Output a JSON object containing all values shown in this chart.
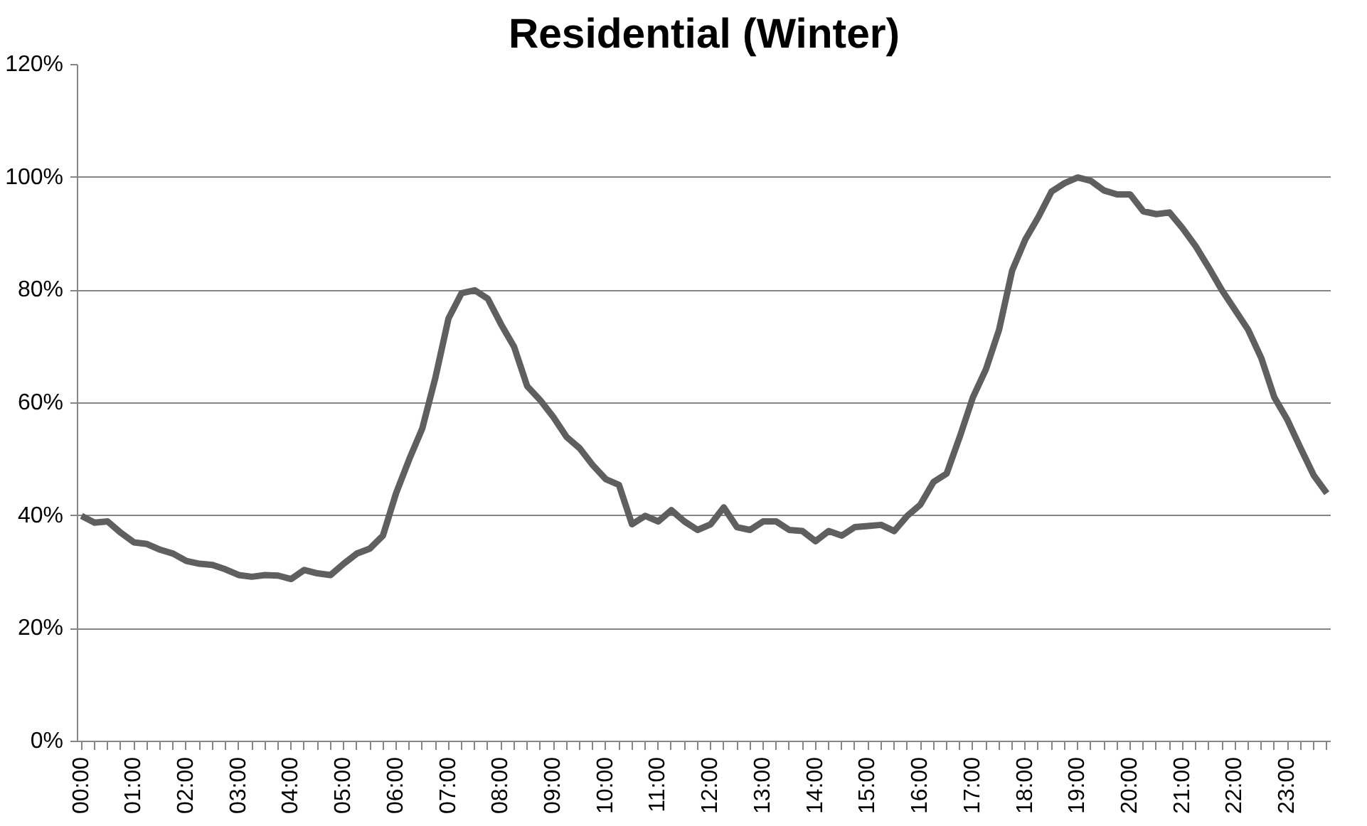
{
  "chart_data": {
    "type": "line",
    "title": "Residential (Winter)",
    "categories": [
      "00:00",
      null,
      null,
      null,
      "01:00",
      null,
      null,
      null,
      "02:00",
      null,
      null,
      null,
      "03:00",
      null,
      null,
      null,
      "04:00",
      null,
      null,
      null,
      "05:00",
      null,
      null,
      null,
      "06:00",
      null,
      null,
      null,
      "07:00",
      null,
      null,
      null,
      "08:00",
      null,
      null,
      null,
      "09:00",
      null,
      null,
      null,
      "10:00",
      null,
      null,
      null,
      "11:00",
      null,
      null,
      null,
      "12:00",
      null,
      null,
      null,
      "13:00",
      null,
      null,
      null,
      "14:00",
      null,
      null,
      null,
      "15:00",
      null,
      null,
      null,
      "16:00",
      null,
      null,
      null,
      "17:00",
      null,
      null,
      null,
      "18:00",
      null,
      null,
      null,
      "19:00",
      null,
      null,
      null,
      "20:00",
      null,
      null,
      null,
      "21:00",
      null,
      null,
      null,
      "22:00",
      null,
      null,
      null,
      "23:00",
      null,
      null,
      null
    ],
    "series": [
      {
        "color": "#5f5f5f",
        "values": [
          40,
          38.8,
          39,
          37,
          35.3,
          35,
          34,
          33.3,
          32,
          31.5,
          31.3,
          30.5,
          29.5,
          29.2,
          29.5,
          29.4,
          28.8,
          30.4,
          29.8,
          29.5,
          31.5,
          33.3,
          34.2,
          36.5,
          44,
          50,
          55.5,
          64.5,
          75,
          79.5,
          80,
          78.5,
          74,
          70,
          63,
          60.5,
          57.5,
          54,
          52,
          49,
          46.5,
          45.5,
          38.5,
          40,
          39,
          41,
          39,
          37.5,
          38.5,
          41.5,
          38,
          37.5,
          39,
          39,
          37.5,
          37.3,
          35.5,
          37.3,
          36.5,
          38,
          38.2,
          38.4,
          37.3,
          40,
          42,
          46,
          47.5,
          54,
          61,
          66,
          73,
          83.5,
          89,
          93,
          97.5,
          99,
          100,
          99.4,
          97.7,
          97,
          97,
          94,
          93.5,
          93.8,
          91,
          87.8,
          84,
          80,
          76.5,
          73,
          68,
          61,
          57,
          52,
          47.2,
          44
        ]
      }
    ],
    "ylim": [
      0,
      120
    ],
    "yticks": [
      {
        "value": 0,
        "label": "0%"
      },
      {
        "value": 20,
        "label": "20%"
      },
      {
        "value": 40,
        "label": "40%"
      },
      {
        "value": 60,
        "label": "60%"
      },
      {
        "value": 80,
        "label": "80%"
      },
      {
        "value": 100,
        "label": "100%"
      },
      {
        "value": 120,
        "label": "120%"
      }
    ],
    "grid": "y",
    "marker": "none",
    "line_style": "solid"
  }
}
